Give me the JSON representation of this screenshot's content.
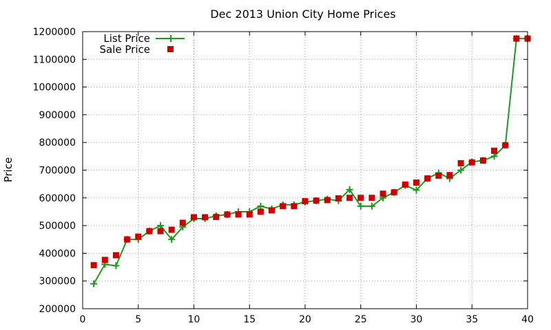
{
  "chart_data": {
    "type": "line",
    "title": "Dec 2013 Union City Home Prices",
    "xlabel": "",
    "ylabel": "Price",
    "xlim": [
      0,
      40
    ],
    "ylim": [
      200000,
      1200000
    ],
    "x_ticks": [
      0,
      5,
      10,
      15,
      20,
      25,
      30,
      35,
      40
    ],
    "y_ticks": [
      200000,
      300000,
      400000,
      500000,
      600000,
      700000,
      800000,
      900000,
      1000000,
      1100000,
      1200000
    ],
    "grid": true,
    "legend_position": "top-left",
    "x": [
      1,
      2,
      3,
      4,
      5,
      6,
      7,
      8,
      9,
      10,
      11,
      12,
      13,
      14,
      15,
      16,
      17,
      18,
      19,
      20,
      21,
      22,
      23,
      24,
      25,
      26,
      27,
      28,
      29,
      30,
      31,
      32,
      33,
      34,
      35,
      36,
      37,
      38,
      39,
      40
    ],
    "series": [
      {
        "name": "List Price",
        "style": "line-plus",
        "color": "#1a9a1a",
        "values": [
          290000,
          360000,
          355000,
          450000,
          450000,
          480000,
          500000,
          450000,
          495000,
          525000,
          525000,
          535000,
          540000,
          550000,
          550000,
          570000,
          560000,
          575000,
          575000,
          585000,
          590000,
          595000,
          590000,
          630000,
          570000,
          570000,
          600000,
          620000,
          645000,
          628000,
          670000,
          690000,
          670000,
          700000,
          730000,
          735000,
          750000,
          790000,
          1175000,
          1175000
        ]
      },
      {
        "name": "Sale Price",
        "style": "square",
        "color": "#cc0000",
        "values": [
          357000,
          376000,
          393000,
          450000,
          460000,
          480000,
          480000,
          485000,
          510000,
          530000,
          530000,
          531000,
          540000,
          540000,
          540000,
          550000,
          555000,
          570000,
          570000,
          588000,
          590000,
          592000,
          598000,
          600000,
          600000,
          600000,
          615000,
          620000,
          648000,
          655000,
          670000,
          680000,
          682000,
          725000,
          728000,
          735000,
          770000,
          790000,
          1175000,
          1175000
        ]
      }
    ]
  }
}
